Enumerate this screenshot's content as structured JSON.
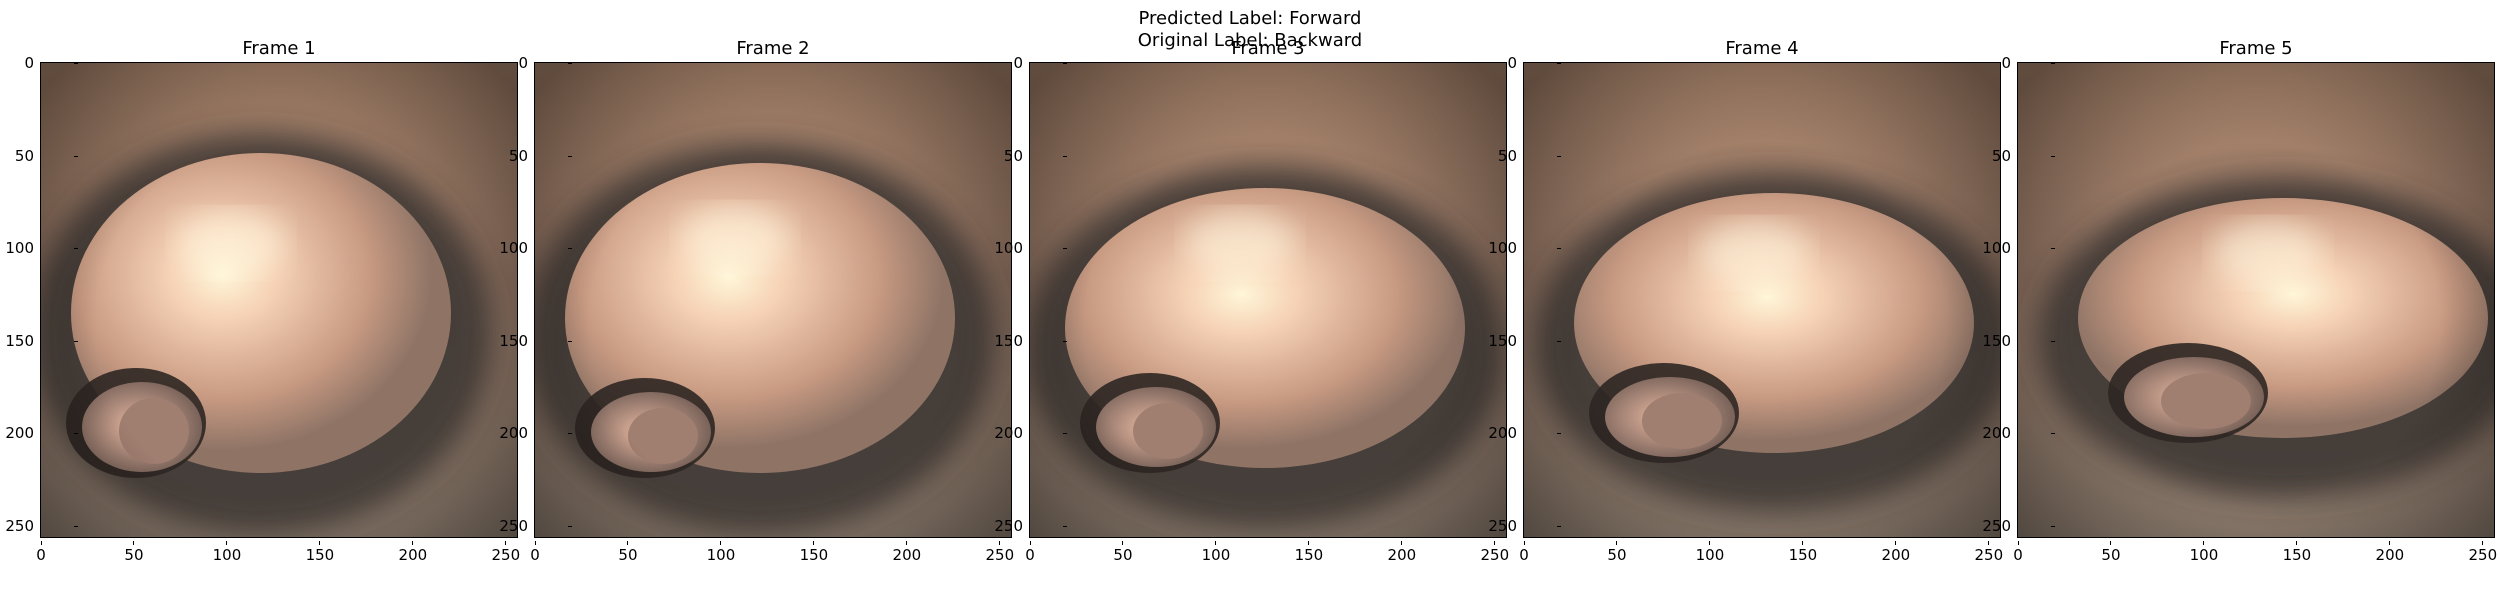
{
  "figure": {
    "predicted_label": "Predicted Label: Forward",
    "original_label": "Original Label: Backward"
  },
  "frames": [
    {
      "title": "Frame 1"
    },
    {
      "title": "Frame 2"
    },
    {
      "title": "Frame 3"
    },
    {
      "title": "Frame 4"
    },
    {
      "title": "Frame 5"
    }
  ],
  "axes": {
    "x_ticks": [
      "0",
      "50",
      "100",
      "150",
      "200",
      "250"
    ],
    "y_ticks": [
      "0",
      "50",
      "100",
      "150",
      "200",
      "250"
    ]
  },
  "colors": {
    "tissue_light": "#f6d2b6",
    "tissue_mid": "#c89a82",
    "tissue_dark": "#3a3430",
    "background_top": "#b08a70"
  }
}
